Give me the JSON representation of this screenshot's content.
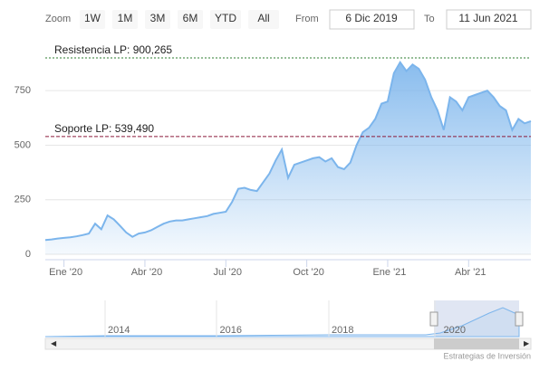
{
  "range_selector": {
    "zoom_label": "Zoom",
    "buttons": [
      "1W",
      "1M",
      "3M",
      "6M",
      "YTD",
      "All"
    ],
    "from_label": "From",
    "from": "6 Dic 2019",
    "to_label": "To",
    "to": "11 Jun 2021"
  },
  "chart_data": {
    "type": "area",
    "color": "#7cb5ec",
    "categories": [
      null,
      null,
      null,
      "Ene '20",
      null,
      null,
      null,
      null,
      null,
      null,
      null,
      null,
      null,
      null,
      null,
      null,
      "Abr '20",
      null,
      null,
      null,
      null,
      null,
      null,
      null,
      null,
      null,
      null,
      null,
      null,
      "Jul '20",
      null,
      null,
      null,
      null,
      null,
      null,
      null,
      null,
      null,
      null,
      null,
      null,
      "Oct '20",
      null,
      null,
      null,
      null,
      null,
      null,
      null,
      null,
      null,
      null,
      null,
      null,
      "Ene '21",
      null,
      null,
      null,
      null,
      null,
      null,
      null,
      null,
      null,
      null,
      null,
      null,
      "Abr '21",
      null,
      null,
      null,
      null,
      null,
      null,
      null,
      null,
      null,
      null
    ],
    "values": [
      65,
      68,
      72,
      75,
      78,
      82,
      88,
      95,
      140,
      115,
      178,
      160,
      130,
      100,
      80,
      95,
      100,
      110,
      125,
      140,
      150,
      155,
      155,
      160,
      165,
      170,
      175,
      185,
      190,
      195,
      240,
      300,
      305,
      295,
      290,
      330,
      370,
      430,
      480,
      350,
      410,
      420,
      430,
      440,
      445,
      425,
      440,
      400,
      390,
      420,
      500,
      560,
      580,
      620,
      690,
      700,
      830,
      880,
      840,
      870,
      850,
      800,
      720,
      660,
      570,
      720,
      700,
      660,
      720,
      730,
      740,
      750,
      720,
      680,
      660,
      570,
      620,
      600,
      610
    ],
    "ylim": [
      -25,
      925
    ],
    "yticks": [
      0,
      250,
      500,
      750
    ],
    "grid": true,
    "plot_lines": [
      {
        "label": "Resistencia LP: 900,265",
        "value": 900.265,
        "color": "#2e7d32"
      },
      {
        "label": "Soporte LP: 539,490",
        "value": 539.49,
        "color": "#8b1a3a"
      }
    ]
  },
  "navigator": {
    "labels": [
      "2014",
      "2016",
      "2018",
      "2020"
    ]
  },
  "credits": "Estrategias de Inversión"
}
